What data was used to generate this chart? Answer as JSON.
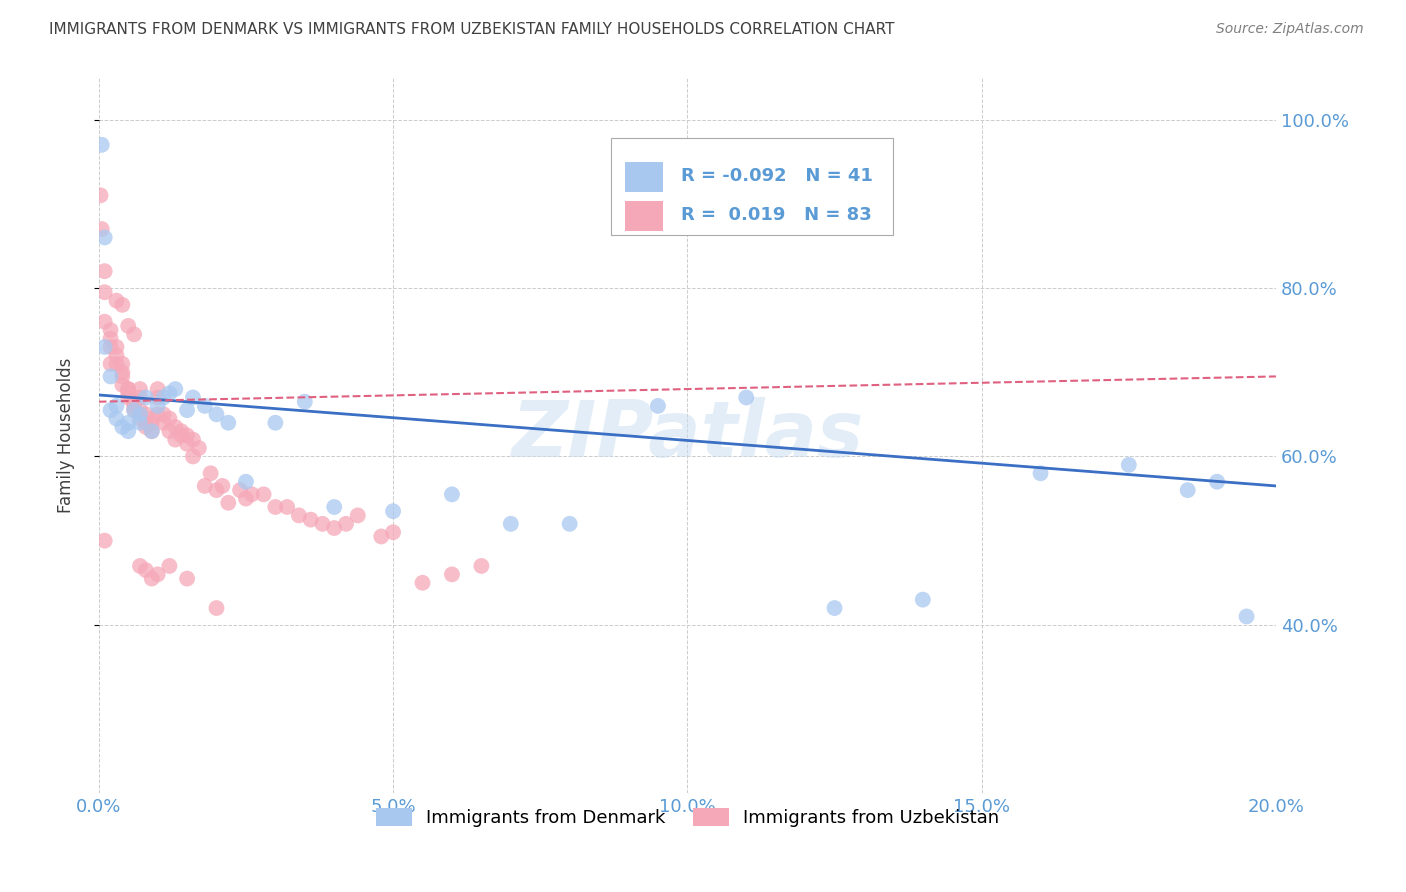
{
  "title": "IMMIGRANTS FROM DENMARK VS IMMIGRANTS FROM UZBEKISTAN FAMILY HOUSEHOLDS CORRELATION CHART",
  "source": "Source: ZipAtlas.com",
  "xlabel": "",
  "ylabel": "Family Households",
  "legend_denmark": "Immigrants from Denmark",
  "legend_uzbekistan": "Immigrants from Uzbekistan",
  "R_denmark": -0.092,
  "N_denmark": 41,
  "R_uzbekistan": 0.019,
  "N_uzbekistan": 83,
  "color_denmark": "#a8c8f0",
  "color_uzbekistan": "#f5a8b8",
  "line_color_denmark": "#3a6fc4",
  "line_color_uzbekistan": "#e06080",
  "watermark": "ZIPatlas",
  "xlim": [
    0.0,
    0.2
  ],
  "ylim": [
    0.2,
    1.05
  ],
  "yticks": [
    0.4,
    0.6,
    0.8,
    1.0
  ],
  "xticks": [
    0.0,
    0.05,
    0.1,
    0.15,
    0.2
  ],
  "denmark_x": [
    0.0005,
    0.001,
    0.001,
    0.002,
    0.002,
    0.003,
    0.003,
    0.004,
    0.005,
    0.005,
    0.006,
    0.007,
    0.007,
    0.008,
    0.009,
    0.01,
    0.011,
    0.012,
    0.013,
    0.015,
    0.016,
    0.018,
    0.02,
    0.022,
    0.025,
    0.03,
    0.035,
    0.04,
    0.05,
    0.06,
    0.07,
    0.08,
    0.095,
    0.11,
    0.125,
    0.14,
    0.16,
    0.175,
    0.185,
    0.19,
    0.195
  ],
  "denmark_y": [
    0.97,
    0.86,
    0.73,
    0.695,
    0.655,
    0.66,
    0.645,
    0.635,
    0.64,
    0.63,
    0.655,
    0.65,
    0.64,
    0.67,
    0.63,
    0.66,
    0.67,
    0.675,
    0.68,
    0.655,
    0.67,
    0.66,
    0.65,
    0.64,
    0.57,
    0.64,
    0.665,
    0.54,
    0.535,
    0.555,
    0.52,
    0.52,
    0.66,
    0.67,
    0.42,
    0.43,
    0.58,
    0.59,
    0.56,
    0.57,
    0.41
  ],
  "uzbekistan_x": [
    0.0003,
    0.0005,
    0.001,
    0.001,
    0.001,
    0.002,
    0.002,
    0.002,
    0.003,
    0.003,
    0.003,
    0.004,
    0.004,
    0.004,
    0.004,
    0.005,
    0.005,
    0.005,
    0.005,
    0.006,
    0.006,
    0.006,
    0.007,
    0.007,
    0.007,
    0.007,
    0.008,
    0.008,
    0.008,
    0.009,
    0.009,
    0.009,
    0.01,
    0.01,
    0.01,
    0.011,
    0.011,
    0.012,
    0.012,
    0.013,
    0.013,
    0.014,
    0.014,
    0.015,
    0.015,
    0.016,
    0.016,
    0.017,
    0.018,
    0.019,
    0.02,
    0.021,
    0.022,
    0.024,
    0.025,
    0.026,
    0.028,
    0.03,
    0.032,
    0.034,
    0.036,
    0.038,
    0.04,
    0.042,
    0.044,
    0.048,
    0.05,
    0.055,
    0.06,
    0.065,
    0.001,
    0.002,
    0.003,
    0.004,
    0.005,
    0.006,
    0.007,
    0.008,
    0.009,
    0.01,
    0.012,
    0.015,
    0.02
  ],
  "uzbekistan_y": [
    0.91,
    0.87,
    0.82,
    0.795,
    0.76,
    0.75,
    0.74,
    0.73,
    0.73,
    0.72,
    0.71,
    0.71,
    0.7,
    0.695,
    0.685,
    0.68,
    0.68,
    0.675,
    0.67,
    0.665,
    0.66,
    0.655,
    0.68,
    0.67,
    0.655,
    0.645,
    0.65,
    0.64,
    0.635,
    0.645,
    0.64,
    0.63,
    0.68,
    0.67,
    0.65,
    0.65,
    0.64,
    0.645,
    0.63,
    0.635,
    0.62,
    0.63,
    0.625,
    0.625,
    0.615,
    0.62,
    0.6,
    0.61,
    0.565,
    0.58,
    0.56,
    0.565,
    0.545,
    0.56,
    0.55,
    0.555,
    0.555,
    0.54,
    0.54,
    0.53,
    0.525,
    0.52,
    0.515,
    0.52,
    0.53,
    0.505,
    0.51,
    0.45,
    0.46,
    0.47,
    0.5,
    0.71,
    0.785,
    0.78,
    0.755,
    0.745,
    0.47,
    0.465,
    0.455,
    0.46,
    0.47,
    0.455,
    0.42
  ],
  "background_color": "#ffffff",
  "grid_color": "#cccccc",
  "axis_label_color": "#5b9bd5",
  "title_color": "#404040",
  "trendline_dk_x0": 0.0,
  "trendline_dk_y0": 0.673,
  "trendline_dk_x1": 0.2,
  "trendline_dk_y1": 0.565,
  "trendline_uz_x0": 0.0,
  "trendline_uz_y0": 0.665,
  "trendline_uz_x1": 0.2,
  "trendline_uz_y1": 0.695
}
